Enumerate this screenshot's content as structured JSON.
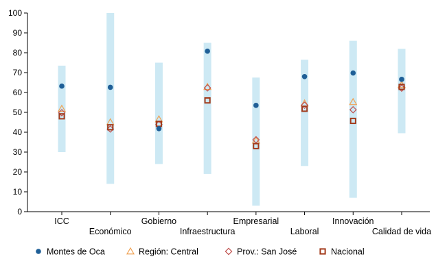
{
  "chart_data": {
    "type": "scatter",
    "title": "",
    "xlabel": "",
    "ylabel": "",
    "ylim": [
      0,
      100
    ],
    "yticks": [
      0,
      10,
      20,
      30,
      40,
      50,
      60,
      70,
      80,
      90,
      100
    ],
    "grid": false,
    "legend_position": "bottom",
    "categories": [
      "ICC",
      "Económico",
      "Gobierno",
      "Infraestructura",
      "Empresarial",
      "Laboral",
      "Innovación",
      "Calidad de vida"
    ],
    "range_bars": {
      "color": "#cde9f4",
      "low": [
        30,
        14,
        24,
        19,
        3,
        23,
        7,
        39.5
      ],
      "high": [
        73.5,
        100,
        75,
        85,
        67.5,
        76.5,
        86,
        82
      ]
    },
    "series": [
      {
        "name": "Montes de Oca",
        "marker": "circle",
        "color": "#1f5f97",
        "values": [
          63.2,
          62.6,
          41.8,
          80.8,
          53.5,
          68.0,
          69.8,
          66.6
        ]
      },
      {
        "name": "Región: Central",
        "marker": "triangle",
        "color": "#f0a254",
        "values": [
          51.8,
          45.0,
          46.5,
          62.8,
          35.8,
          54.5,
          55.2,
          63.8
        ]
      },
      {
        "name": "Prov.: San José",
        "marker": "diamond",
        "color": "#c0504d",
        "values": [
          49.8,
          41.6,
          43.9,
          62.3,
          36.2,
          53.6,
          51.3,
          62.2
        ]
      },
      {
        "name": "Nacional",
        "marker": "square",
        "color": "#a33b1c",
        "values": [
          48.0,
          42.5,
          44.2,
          56.0,
          33.0,
          51.8,
          45.7,
          62.8
        ]
      }
    ]
  }
}
